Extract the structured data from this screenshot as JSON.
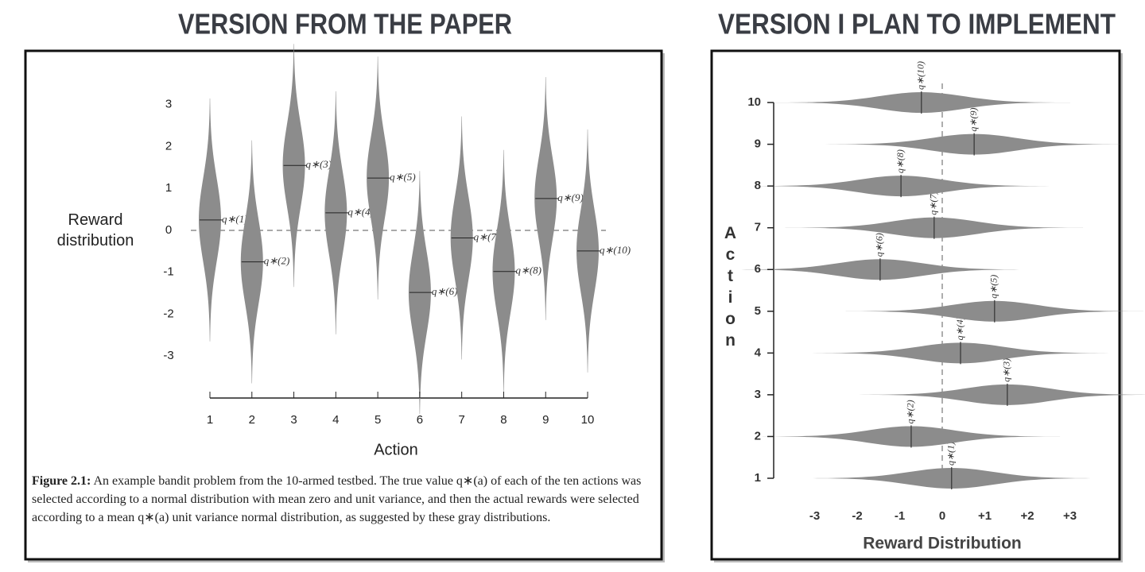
{
  "chart_data": [
    {
      "type": "violin",
      "orientation": "vertical",
      "title": "VERSION FROM THE PAPER",
      "x_label": "Action",
      "y_label": "Reward distribution",
      "categories": [
        "1",
        "2",
        "3",
        "4",
        "5",
        "6",
        "7",
        "8",
        "9",
        "10"
      ],
      "values": [
        0.25,
        -0.75,
        1.55,
        0.42,
        1.25,
        -1.48,
        -0.18,
        -0.98,
        0.76,
        -0.49
      ],
      "mean_labels": [
        "q∗(1)",
        "q∗(2)",
        "q∗(3)",
        "q∗(4)",
        "q∗(5)",
        "q∗(6)",
        "q∗(7)",
        "q∗(8)",
        "q∗(9)",
        "q∗(10)"
      ],
      "ylim": [
        -4,
        4
      ],
      "yticks": [
        -3,
        -2,
        -1,
        0,
        1,
        2,
        3
      ],
      "reference_line": 0,
      "color": "#8c8c8c",
      "caption": {
        "label": "Figure 2.1:",
        "text": "An example bandit problem from the 10-armed testbed. The true value q∗(a) of each of the ten actions was selected according to a normal distribution with mean zero and unit variance, and then the actual rewards were selected according to a mean q∗(a) unit variance normal distribution, as suggested by these gray distributions."
      }
    },
    {
      "type": "violin",
      "orientation": "horizontal",
      "title": "VERSION I PLAN TO IMPLEMENT",
      "x_label": "Reward Distribution",
      "y_label": "Action",
      "categories": [
        "1",
        "2",
        "3",
        "4",
        "5",
        "6",
        "7",
        "8",
        "9",
        "10"
      ],
      "values": [
        0.22,
        -0.73,
        1.53,
        0.43,
        1.23,
        -1.46,
        -0.19,
        -0.97,
        0.75,
        -0.49
      ],
      "mean_labels": [
        "q∗(1)",
        "q∗(2)",
        "q∗(3)",
        "q∗(4)",
        "q∗(5)",
        "q∗(6)",
        "q∗(7)",
        "q∗(8)",
        "q∗(9)",
        "q∗(10)"
      ],
      "xlim": [
        -4,
        4
      ],
      "xticks": [
        -3,
        -2,
        -1,
        0,
        {
          "value": 1,
          "label": "+1"
        },
        {
          "value": 2,
          "label": "+2"
        },
        {
          "value": 3,
          "label": "+3"
        }
      ],
      "reference_line": 0,
      "color": "#8c8c8c"
    }
  ]
}
